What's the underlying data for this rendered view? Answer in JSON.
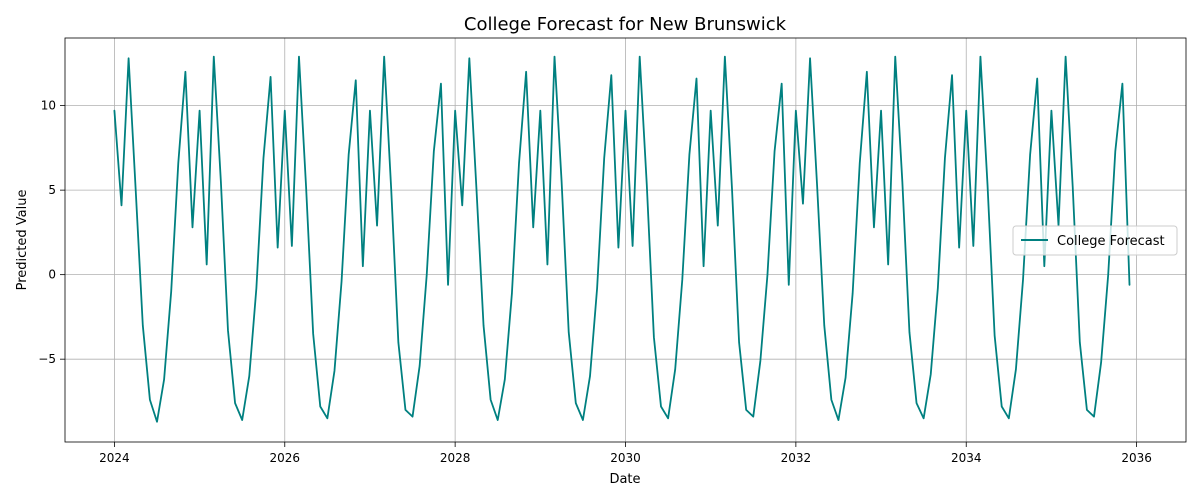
{
  "chart_data": {
    "type": "line",
    "title": "College Forecast for New Brunswick",
    "xlabel": "Date",
    "ylabel": "Predicted Value",
    "x_unit": "year",
    "xlim": [
      2023.42,
      2036.58
    ],
    "ylim": [
      -9.9,
      14.0
    ],
    "x_ticks": [
      2024,
      2026,
      2028,
      2030,
      2032,
      2034,
      2036
    ],
    "x_tick_labels": [
      "2024",
      "2026",
      "2028",
      "2030",
      "2032",
      "2034",
      "2036"
    ],
    "y_ticks": [
      -5,
      0,
      5,
      10
    ],
    "y_tick_labels": [
      "−5",
      "0",
      "5",
      "10"
    ],
    "grid": true,
    "legend": {
      "placement": "right",
      "entries": [
        "College Forecast"
      ]
    },
    "series": [
      {
        "name": "College Forecast",
        "color": "#008080",
        "x_start": 2024.0,
        "x_step_months": 1,
        "values": [
          9.7,
          4.1,
          12.8,
          5.0,
          -3.0,
          -7.4,
          -8.7,
          -6.2,
          -1.0,
          6.6,
          12.0,
          2.8,
          9.7,
          0.6,
          12.9,
          5.5,
          -3.3,
          -7.6,
          -8.6,
          -6.0,
          -0.8,
          6.9,
          11.7,
          1.6,
          9.7,
          1.7,
          12.9,
          5.2,
          -3.5,
          -7.8,
          -8.5,
          -5.7,
          -0.4,
          7.1,
          11.5,
          0.5,
          9.7,
          2.9,
          12.9,
          5.0,
          -4.0,
          -8.0,
          -8.4,
          -5.4,
          0.0,
          7.3,
          11.3,
          -0.6,
          9.7,
          4.1,
          12.8,
          5.1,
          -3.0,
          -7.4,
          -8.6,
          -6.2,
          -1.1,
          6.6,
          12.0,
          2.8,
          9.7,
          0.6,
          12.9,
          5.5,
          -3.4,
          -7.6,
          -8.6,
          -6.0,
          -0.8,
          6.9,
          11.8,
          1.6,
          9.7,
          1.7,
          12.9,
          5.3,
          -3.7,
          -7.8,
          -8.5,
          -5.6,
          -0.3,
          7.1,
          11.6,
          0.5,
          9.7,
          2.9,
          12.9,
          5.1,
          -4.0,
          -8.0,
          -8.4,
          -5.1,
          0.0,
          7.3,
          11.3,
          -0.6,
          9.7,
          4.2,
          12.8,
          5.2,
          -3.0,
          -7.4,
          -8.6,
          -6.1,
          -1.1,
          6.6,
          12.0,
          2.8,
          9.7,
          0.6,
          12.9,
          5.5,
          -3.4,
          -7.6,
          -8.5,
          -5.9,
          -0.8,
          6.9,
          11.8,
          1.6,
          9.7,
          1.7,
          12.9,
          5.3,
          -3.6,
          -7.8,
          -8.5,
          -5.6,
          -0.3,
          7.1,
          11.6,
          0.5,
          9.7,
          2.9,
          12.9,
          5.2,
          -4.0,
          -8.0,
          -8.4,
          -5.2,
          0.0,
          7.3,
          11.3,
          -0.6
        ]
      }
    ]
  }
}
